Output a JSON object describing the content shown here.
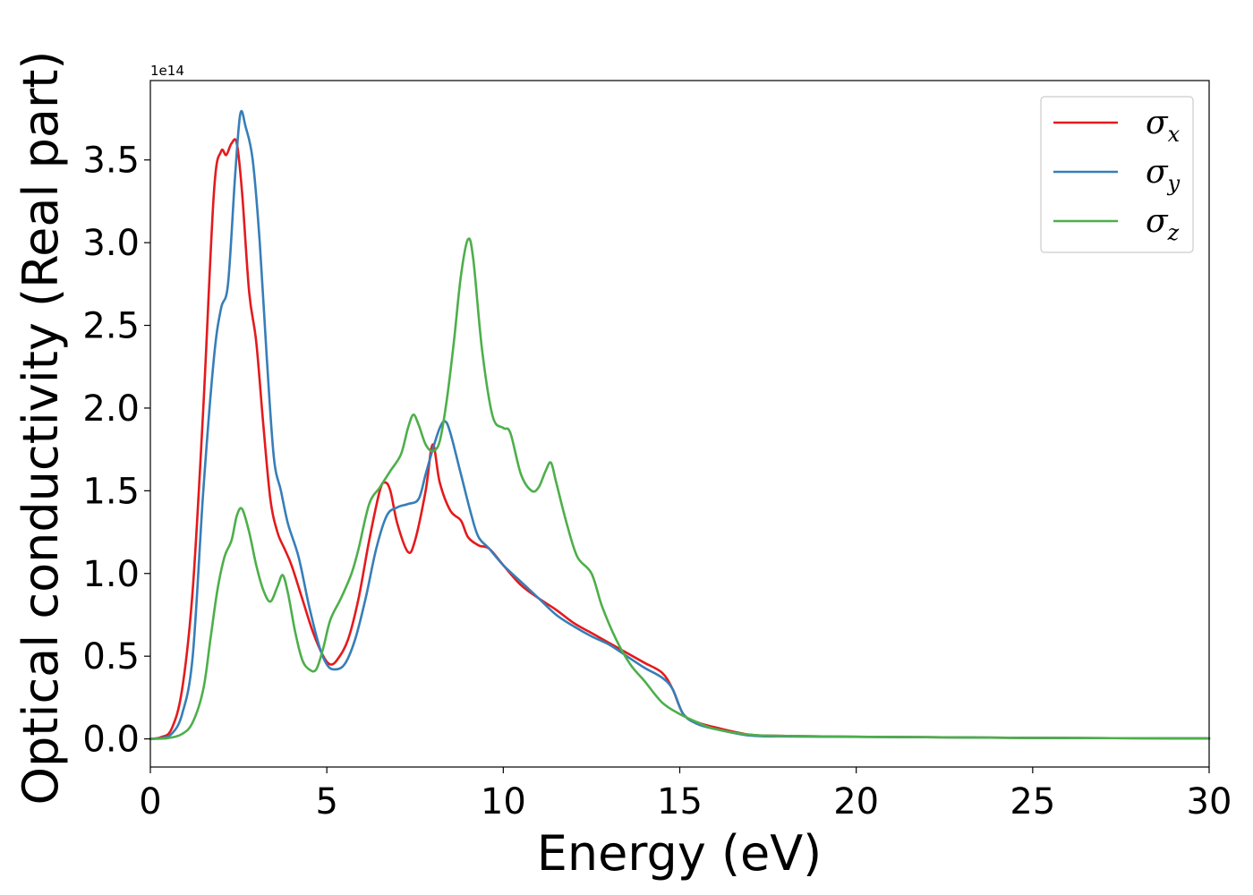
{
  "chart_data": {
    "type": "line",
    "title": "",
    "xlabel": "Energy (eV)",
    "ylabel": "Optical conductivity (Real part)",
    "y_offset_label": "1e14",
    "xlim": [
      0,
      30
    ],
    "ylim": [
      -0.17,
      3.98
    ],
    "xticks": [
      0,
      5,
      10,
      15,
      20,
      25,
      30
    ],
    "xtick_labels": [
      "0",
      "5",
      "10",
      "15",
      "20",
      "25",
      "30"
    ],
    "yticks": [
      0.0,
      0.5,
      1.0,
      1.5,
      2.0,
      2.5,
      3.0,
      3.5
    ],
    "ytick_labels": [
      "0.0",
      "0.5",
      "1.0",
      "1.5",
      "2.0",
      "2.5",
      "3.0",
      "3.5"
    ],
    "grid": false,
    "legend_position": "top-right",
    "series": [
      {
        "name": "σx",
        "symbol": "σ",
        "subscript": "x",
        "color": "#e41a1c",
        "points": [
          [
            0,
            0
          ],
          [
            0.3,
            0.01
          ],
          [
            0.6,
            0.06
          ],
          [
            0.9,
            0.3
          ],
          [
            1.2,
            0.9
          ],
          [
            1.5,
            2.0
          ],
          [
            1.8,
            3.3
          ],
          [
            2.0,
            3.55
          ],
          [
            2.15,
            3.53
          ],
          [
            2.3,
            3.6
          ],
          [
            2.45,
            3.6
          ],
          [
            2.6,
            3.3
          ],
          [
            2.8,
            2.7
          ],
          [
            3.0,
            2.4
          ],
          [
            3.2,
            1.9
          ],
          [
            3.4,
            1.45
          ],
          [
            3.6,
            1.25
          ],
          [
            3.8,
            1.15
          ],
          [
            4.0,
            1.05
          ],
          [
            4.3,
            0.85
          ],
          [
            4.6,
            0.65
          ],
          [
            4.9,
            0.5
          ],
          [
            5.1,
            0.45
          ],
          [
            5.3,
            0.48
          ],
          [
            5.6,
            0.6
          ],
          [
            5.9,
            0.85
          ],
          [
            6.2,
            1.2
          ],
          [
            6.5,
            1.5
          ],
          [
            6.65,
            1.55
          ],
          [
            6.8,
            1.5
          ],
          [
            7.0,
            1.3
          ],
          [
            7.3,
            1.13
          ],
          [
            7.5,
            1.2
          ],
          [
            7.8,
            1.5
          ],
          [
            8.0,
            1.78
          ],
          [
            8.2,
            1.55
          ],
          [
            8.5,
            1.38
          ],
          [
            8.8,
            1.32
          ],
          [
            9.0,
            1.22
          ],
          [
            9.3,
            1.17
          ],
          [
            9.6,
            1.15
          ],
          [
            10.0,
            1.05
          ],
          [
            10.5,
            0.93
          ],
          [
            11.0,
            0.85
          ],
          [
            11.5,
            0.78
          ],
          [
            12.0,
            0.7
          ],
          [
            12.5,
            0.64
          ],
          [
            13.0,
            0.58
          ],
          [
            13.5,
            0.52
          ],
          [
            14.0,
            0.46
          ],
          [
            14.5,
            0.4
          ],
          [
            14.8,
            0.3
          ],
          [
            15.1,
            0.15
          ],
          [
            15.5,
            0.1
          ],
          [
            16.0,
            0.07
          ],
          [
            17.0,
            0.025
          ],
          [
            18.0,
            0.018
          ],
          [
            20.0,
            0.013
          ],
          [
            22.0,
            0.01
          ],
          [
            25.0,
            0.006
          ],
          [
            30.0,
            0.003
          ]
        ]
      },
      {
        "name": "σy",
        "symbol": "σ",
        "subscript": "y",
        "color": "#377eb8",
        "points": [
          [
            0,
            0
          ],
          [
            0.3,
            0.005
          ],
          [
            0.6,
            0.03
          ],
          [
            0.9,
            0.15
          ],
          [
            1.2,
            0.5
          ],
          [
            1.5,
            1.5
          ],
          [
            1.8,
            2.3
          ],
          [
            2.0,
            2.6
          ],
          [
            2.2,
            2.75
          ],
          [
            2.4,
            3.4
          ],
          [
            2.55,
            3.78
          ],
          [
            2.7,
            3.7
          ],
          [
            2.9,
            3.5
          ],
          [
            3.1,
            3.0
          ],
          [
            3.3,
            2.3
          ],
          [
            3.5,
            1.7
          ],
          [
            3.7,
            1.5
          ],
          [
            3.9,
            1.3
          ],
          [
            4.2,
            1.1
          ],
          [
            4.5,
            0.8
          ],
          [
            4.8,
            0.55
          ],
          [
            5.0,
            0.45
          ],
          [
            5.2,
            0.42
          ],
          [
            5.5,
            0.45
          ],
          [
            5.8,
            0.6
          ],
          [
            6.1,
            0.85
          ],
          [
            6.4,
            1.15
          ],
          [
            6.7,
            1.35
          ],
          [
            7.0,
            1.4
          ],
          [
            7.3,
            1.42
          ],
          [
            7.6,
            1.45
          ],
          [
            7.8,
            1.6
          ],
          [
            8.0,
            1.75
          ],
          [
            8.2,
            1.88
          ],
          [
            8.35,
            1.92
          ],
          [
            8.5,
            1.85
          ],
          [
            8.8,
            1.6
          ],
          [
            9.1,
            1.35
          ],
          [
            9.3,
            1.22
          ],
          [
            9.6,
            1.15
          ],
          [
            10.0,
            1.05
          ],
          [
            10.5,
            0.95
          ],
          [
            11.0,
            0.85
          ],
          [
            11.5,
            0.75
          ],
          [
            12.0,
            0.68
          ],
          [
            12.5,
            0.62
          ],
          [
            13.0,
            0.57
          ],
          [
            13.5,
            0.5
          ],
          [
            14.0,
            0.43
          ],
          [
            14.5,
            0.37
          ],
          [
            14.8,
            0.3
          ],
          [
            15.1,
            0.15
          ],
          [
            15.5,
            0.09
          ],
          [
            16.0,
            0.06
          ],
          [
            17.0,
            0.02
          ],
          [
            18.0,
            0.015
          ],
          [
            20.0,
            0.012
          ],
          [
            22.0,
            0.01
          ],
          [
            25.0,
            0.006
          ],
          [
            30.0,
            0.003
          ]
        ]
      },
      {
        "name": "σz",
        "symbol": "σ",
        "subscript": "z",
        "color": "#4daf4a",
        "points": [
          [
            0,
            0
          ],
          [
            0.5,
            0.005
          ],
          [
            0.9,
            0.03
          ],
          [
            1.2,
            0.1
          ],
          [
            1.5,
            0.3
          ],
          [
            1.7,
            0.6
          ],
          [
            1.9,
            0.9
          ],
          [
            2.1,
            1.1
          ],
          [
            2.3,
            1.2
          ],
          [
            2.45,
            1.35
          ],
          [
            2.6,
            1.39
          ],
          [
            2.8,
            1.25
          ],
          [
            3.0,
            1.05
          ],
          [
            3.2,
            0.9
          ],
          [
            3.4,
            0.83
          ],
          [
            3.6,
            0.92
          ],
          [
            3.75,
            0.99
          ],
          [
            3.9,
            0.88
          ],
          [
            4.1,
            0.65
          ],
          [
            4.3,
            0.48
          ],
          [
            4.5,
            0.42
          ],
          [
            4.7,
            0.42
          ],
          [
            4.9,
            0.55
          ],
          [
            5.1,
            0.72
          ],
          [
            5.4,
            0.85
          ],
          [
            5.7,
            1.0
          ],
          [
            5.9,
            1.15
          ],
          [
            6.2,
            1.42
          ],
          [
            6.5,
            1.52
          ],
          [
            6.8,
            1.62
          ],
          [
            7.1,
            1.72
          ],
          [
            7.3,
            1.88
          ],
          [
            7.45,
            1.96
          ],
          [
            7.6,
            1.9
          ],
          [
            7.8,
            1.78
          ],
          [
            8.0,
            1.74
          ],
          [
            8.2,
            1.8
          ],
          [
            8.4,
            2.05
          ],
          [
            8.6,
            2.4
          ],
          [
            8.8,
            2.8
          ],
          [
            9.0,
            3.02
          ],
          [
            9.15,
            2.9
          ],
          [
            9.4,
            2.35
          ],
          [
            9.7,
            1.95
          ],
          [
            10.0,
            1.88
          ],
          [
            10.2,
            1.85
          ],
          [
            10.5,
            1.6
          ],
          [
            10.8,
            1.5
          ],
          [
            11.0,
            1.52
          ],
          [
            11.2,
            1.62
          ],
          [
            11.35,
            1.67
          ],
          [
            11.5,
            1.55
          ],
          [
            11.8,
            1.3
          ],
          [
            12.1,
            1.1
          ],
          [
            12.5,
            1.0
          ],
          [
            12.8,
            0.8
          ],
          [
            13.2,
            0.6
          ],
          [
            13.6,
            0.45
          ],
          [
            14.0,
            0.35
          ],
          [
            14.5,
            0.22
          ],
          [
            15.0,
            0.15
          ],
          [
            15.5,
            0.1
          ],
          [
            16.0,
            0.06
          ],
          [
            17.0,
            0.025
          ],
          [
            18.0,
            0.018
          ],
          [
            20.0,
            0.013
          ],
          [
            22.0,
            0.01
          ],
          [
            25.0,
            0.006
          ],
          [
            30.0,
            0.003
          ]
        ]
      }
    ]
  }
}
